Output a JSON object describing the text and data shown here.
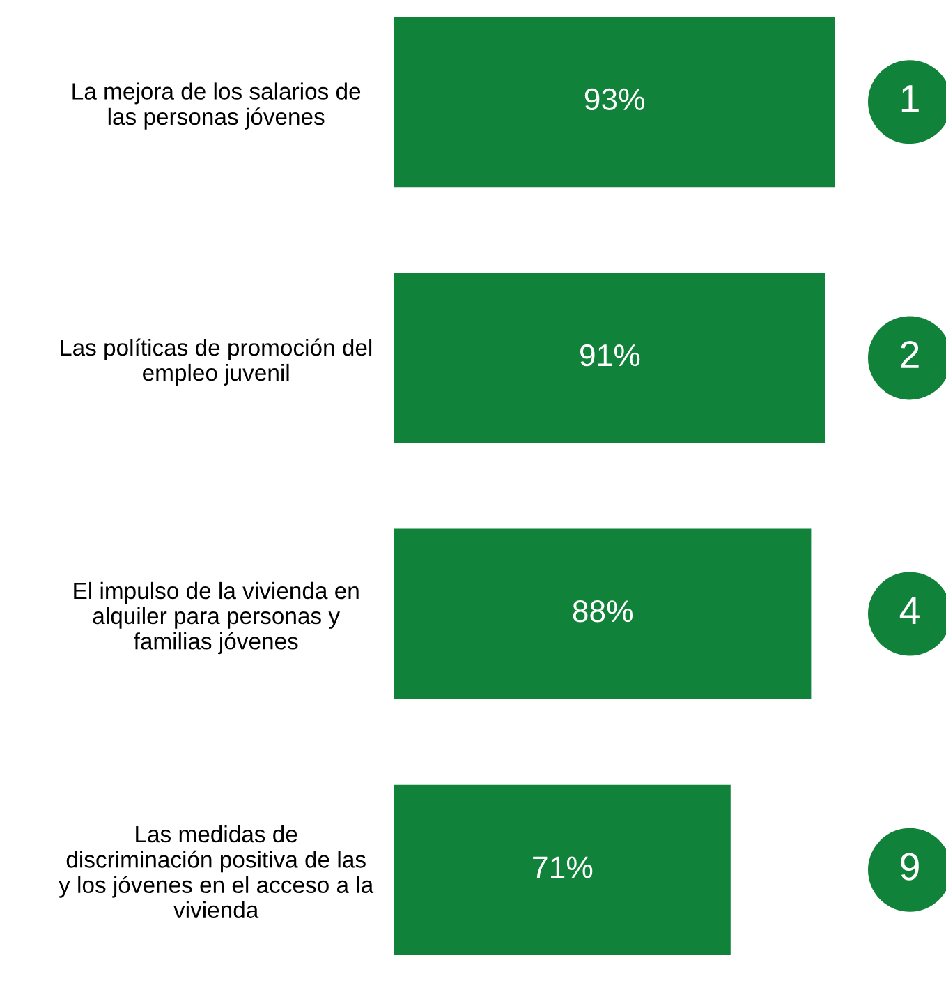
{
  "chart_data": {
    "type": "bar",
    "orientation": "horizontal",
    "categories": [
      "La mejora de los salarios de\nlas personas jóvenes",
      "Las políticas de promoción del\nempleo juvenil",
      "El impulso de la vivienda en\nalquiler para personas y\nfamilias jóvenes",
      "Las medidas de\ndiscriminación positiva de las\ny los jóvenes en el acceso a la\nvivienda"
    ],
    "values": [
      93,
      91,
      88,
      71
    ],
    "value_labels": [
      "93%",
      "91%",
      "88%",
      "71%"
    ],
    "color": "#10823a",
    "tick_labels": "y",
    "grid": false,
    "legend": false,
    "annotations": [
      "1",
      "2",
      "4",
      "9"
    ]
  }
}
